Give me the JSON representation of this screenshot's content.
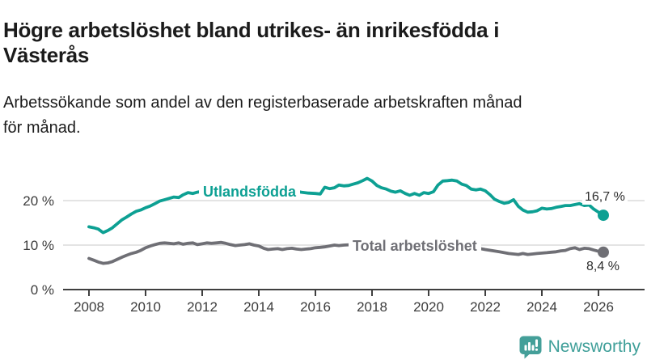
{
  "header": {
    "title_lines": [
      "Högre arbetslöshet bland utrikes- än inrikesfödda i",
      "Västerås"
    ],
    "subtitle_lines": [
      "Arbetssökande som andel av den registerbaserade arbetskraften månad",
      "för månad."
    ]
  },
  "chart_data": {
    "type": "line",
    "title": "Högre arbetslöshet bland utrikes- än inrikesfödda i Västerås",
    "subtitle": "Arbetssökande som andel av den registerbaserade arbetskraften månad för månad.",
    "unit": "%",
    "grid": "horizontal",
    "legend_position": "inline-labels",
    "x_axis": {
      "min": 2008,
      "max": 2026.5,
      "ticks": [
        2008,
        2010,
        2012,
        2014,
        2016,
        2018,
        2020,
        2022,
        2024,
        2026
      ]
    },
    "y_axis": {
      "min": 0,
      "max": 26,
      "tick_values": [
        0,
        10,
        20
      ],
      "tick_labels": [
        "0 %",
        "10 %",
        "20 %"
      ]
    },
    "colors": {
      "series0": "#0da093",
      "series1": "#6f6f75",
      "grid": "#dcdcdc",
      "axis": "#3f3f3f"
    },
    "series": [
      {
        "name": "Utlandsfödda",
        "color": "#0da093",
        "end_label": "16,7 %",
        "end_value": 16.7,
        "points": [
          [
            2008.0,
            14.1
          ],
          [
            2008.17,
            13.9
          ],
          [
            2008.33,
            13.6
          ],
          [
            2008.5,
            12.8
          ],
          [
            2008.67,
            13.3
          ],
          [
            2008.83,
            13.9
          ],
          [
            2009.0,
            14.8
          ],
          [
            2009.17,
            15.7
          ],
          [
            2009.33,
            16.3
          ],
          [
            2009.5,
            17.0
          ],
          [
            2009.67,
            17.6
          ],
          [
            2009.83,
            17.9
          ],
          [
            2010.0,
            18.4
          ],
          [
            2010.17,
            18.8
          ],
          [
            2010.33,
            19.3
          ],
          [
            2010.5,
            19.9
          ],
          [
            2010.67,
            20.2
          ],
          [
            2010.83,
            20.5
          ],
          [
            2011.0,
            20.8
          ],
          [
            2011.17,
            20.7
          ],
          [
            2011.33,
            21.3
          ],
          [
            2011.5,
            21.8
          ],
          [
            2011.67,
            21.6
          ],
          [
            2011.83,
            21.9
          ],
          [
            2012.0,
            22.1
          ],
          [
            2012.25,
            22.3
          ],
          [
            2012.5,
            22.6
          ],
          [
            2012.75,
            22.8
          ],
          [
            2013.0,
            22.9
          ],
          [
            2013.25,
            23.0
          ],
          [
            2013.5,
            23.1
          ],
          [
            2013.75,
            23.0
          ],
          [
            2014.0,
            22.9
          ],
          [
            2014.25,
            22.8
          ],
          [
            2014.5,
            22.6
          ],
          [
            2014.75,
            22.5
          ],
          [
            2015.0,
            22.4
          ],
          [
            2015.25,
            22.2
          ],
          [
            2015.5,
            21.9
          ],
          [
            2015.75,
            21.7
          ],
          [
            2016.0,
            21.6
          ],
          [
            2016.17,
            21.5
          ],
          [
            2016.33,
            23.0
          ],
          [
            2016.5,
            22.7
          ],
          [
            2016.67,
            22.9
          ],
          [
            2016.83,
            23.5
          ],
          [
            2017.0,
            23.3
          ],
          [
            2017.17,
            23.4
          ],
          [
            2017.33,
            23.7
          ],
          [
            2017.5,
            24.0
          ],
          [
            2017.67,
            24.5
          ],
          [
            2017.83,
            25.0
          ],
          [
            2018.0,
            24.4
          ],
          [
            2018.17,
            23.4
          ],
          [
            2018.33,
            22.9
          ],
          [
            2018.5,
            22.6
          ],
          [
            2018.67,
            22.1
          ],
          [
            2018.83,
            21.9
          ],
          [
            2019.0,
            22.2
          ],
          [
            2019.17,
            21.6
          ],
          [
            2019.33,
            21.2
          ],
          [
            2019.5,
            21.6
          ],
          [
            2019.67,
            21.2
          ],
          [
            2019.83,
            21.8
          ],
          [
            2020.0,
            21.6
          ],
          [
            2020.17,
            22.0
          ],
          [
            2020.33,
            23.5
          ],
          [
            2020.5,
            24.4
          ],
          [
            2020.67,
            24.5
          ],
          [
            2020.83,
            24.6
          ],
          [
            2021.0,
            24.4
          ],
          [
            2021.17,
            23.7
          ],
          [
            2021.33,
            23.4
          ],
          [
            2021.5,
            22.6
          ],
          [
            2021.67,
            22.4
          ],
          [
            2021.83,
            22.6
          ],
          [
            2022.0,
            22.2
          ],
          [
            2022.17,
            21.3
          ],
          [
            2022.33,
            20.3
          ],
          [
            2022.5,
            19.8
          ],
          [
            2022.67,
            19.4
          ],
          [
            2022.83,
            19.6
          ],
          [
            2023.0,
            20.2
          ],
          [
            2023.17,
            18.7
          ],
          [
            2023.33,
            17.9
          ],
          [
            2023.5,
            17.4
          ],
          [
            2023.67,
            17.5
          ],
          [
            2023.83,
            17.7
          ],
          [
            2024.0,
            18.3
          ],
          [
            2024.17,
            18.1
          ],
          [
            2024.33,
            18.2
          ],
          [
            2024.5,
            18.5
          ],
          [
            2024.67,
            18.7
          ],
          [
            2024.83,
            18.9
          ],
          [
            2025.0,
            18.9
          ],
          [
            2025.17,
            19.1
          ],
          [
            2025.33,
            19.3
          ],
          [
            2025.5,
            18.9
          ],
          [
            2025.67,
            19.0
          ],
          [
            2025.83,
            18.1
          ],
          [
            2026.0,
            17.4
          ],
          [
            2026.17,
            16.7
          ]
        ]
      },
      {
        "name": "Total arbetslöshet",
        "color": "#6f6f75",
        "end_label": "8,4 %",
        "end_value": 8.4,
        "points": [
          [
            2008.0,
            7.0
          ],
          [
            2008.17,
            6.6
          ],
          [
            2008.33,
            6.2
          ],
          [
            2008.5,
            5.9
          ],
          [
            2008.67,
            6.0
          ],
          [
            2008.83,
            6.3
          ],
          [
            2009.0,
            6.8
          ],
          [
            2009.17,
            7.3
          ],
          [
            2009.33,
            7.7
          ],
          [
            2009.5,
            8.1
          ],
          [
            2009.67,
            8.4
          ],
          [
            2009.83,
            8.8
          ],
          [
            2010.0,
            9.4
          ],
          [
            2010.17,
            9.8
          ],
          [
            2010.33,
            10.1
          ],
          [
            2010.5,
            10.4
          ],
          [
            2010.67,
            10.5
          ],
          [
            2010.83,
            10.4
          ],
          [
            2011.0,
            10.3
          ],
          [
            2011.17,
            10.5
          ],
          [
            2011.33,
            10.2
          ],
          [
            2011.5,
            10.4
          ],
          [
            2011.67,
            10.5
          ],
          [
            2011.83,
            10.1
          ],
          [
            2012.0,
            10.3
          ],
          [
            2012.17,
            10.5
          ],
          [
            2012.33,
            10.4
          ],
          [
            2012.5,
            10.5
          ],
          [
            2012.67,
            10.6
          ],
          [
            2012.83,
            10.4
          ],
          [
            2013.0,
            10.1
          ],
          [
            2013.17,
            9.9
          ],
          [
            2013.33,
            10.0
          ],
          [
            2013.5,
            10.1
          ],
          [
            2013.67,
            10.3
          ],
          [
            2013.83,
            10.0
          ],
          [
            2014.0,
            9.8
          ],
          [
            2014.17,
            9.3
          ],
          [
            2014.33,
            9.0
          ],
          [
            2014.5,
            9.1
          ],
          [
            2014.67,
            9.2
          ],
          [
            2014.83,
            9.0
          ],
          [
            2015.0,
            9.2
          ],
          [
            2015.17,
            9.3
          ],
          [
            2015.33,
            9.1
          ],
          [
            2015.5,
            9.0
          ],
          [
            2015.67,
            9.1
          ],
          [
            2015.83,
            9.2
          ],
          [
            2016.0,
            9.4
          ],
          [
            2016.17,
            9.5
          ],
          [
            2016.33,
            9.6
          ],
          [
            2016.5,
            9.8
          ],
          [
            2016.67,
            10.0
          ],
          [
            2016.83,
            9.9
          ],
          [
            2017.0,
            10.0
          ],
          [
            2017.33,
            10.1
          ],
          [
            2017.67,
            10.0
          ],
          [
            2018.0,
            9.8
          ],
          [
            2018.5,
            9.6
          ],
          [
            2019.0,
            9.5
          ],
          [
            2019.5,
            9.4
          ],
          [
            2020.0,
            9.8
          ],
          [
            2020.33,
            10.4
          ],
          [
            2020.67,
            10.5
          ],
          [
            2021.0,
            10.2
          ],
          [
            2021.5,
            9.6
          ],
          [
            2022.0,
            9.0
          ],
          [
            2022.5,
            8.5
          ],
          [
            2022.83,
            8.1
          ],
          [
            2023.0,
            8.0
          ],
          [
            2023.17,
            7.9
          ],
          [
            2023.33,
            8.1
          ],
          [
            2023.5,
            7.9
          ],
          [
            2023.67,
            8.0
          ],
          [
            2023.83,
            8.1
          ],
          [
            2024.0,
            8.2
          ],
          [
            2024.17,
            8.3
          ],
          [
            2024.33,
            8.4
          ],
          [
            2024.5,
            8.5
          ],
          [
            2024.67,
            8.7
          ],
          [
            2024.83,
            8.8
          ],
          [
            2025.0,
            9.2
          ],
          [
            2025.17,
            9.4
          ],
          [
            2025.33,
            9.0
          ],
          [
            2025.5,
            9.3
          ],
          [
            2025.67,
            9.2
          ],
          [
            2025.83,
            8.9
          ],
          [
            2026.0,
            8.6
          ],
          [
            2026.17,
            8.4
          ]
        ]
      }
    ]
  },
  "footer": {
    "brand": "Newsworthy",
    "brand_color": "#3f9f99",
    "logo_icon": "bar-chart-speech-bubble-icon"
  }
}
